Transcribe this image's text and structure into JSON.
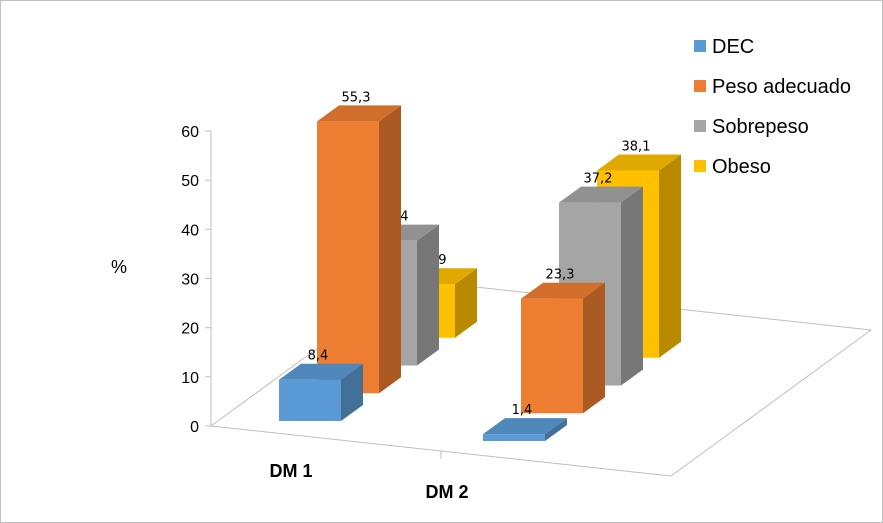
{
  "chart_data": {
    "type": "bar",
    "categories": [
      "DM 1",
      "DM 2"
    ],
    "series": [
      {
        "name": "DEC",
        "values": [
          8.4,
          1.4
        ],
        "labels": [
          "8,4",
          "1,4"
        ],
        "color": "#5b9bd5"
      },
      {
        "name": "Peso adecuado",
        "values": [
          55.3,
          23.3
        ],
        "labels": [
          "55,3",
          "23,3"
        ],
        "color": "#ed7d31"
      },
      {
        "name": "Sobrepeso",
        "values": [
          25.4,
          37.2
        ],
        "labels": [
          "25,4",
          "37,2"
        ],
        "color": "#a5a5a5"
      },
      {
        "name": "Obeso",
        "values": [
          10.9,
          38.1
        ],
        "labels": [
          "10,9",
          "38,1"
        ],
        "color": "#ffc000"
      }
    ],
    "ylabel": "%",
    "ylim": [
      0,
      60
    ],
    "yticks": [
      0,
      10,
      20,
      30,
      40,
      50,
      60
    ],
    "legend": "top-right",
    "style": "3d-column"
  }
}
